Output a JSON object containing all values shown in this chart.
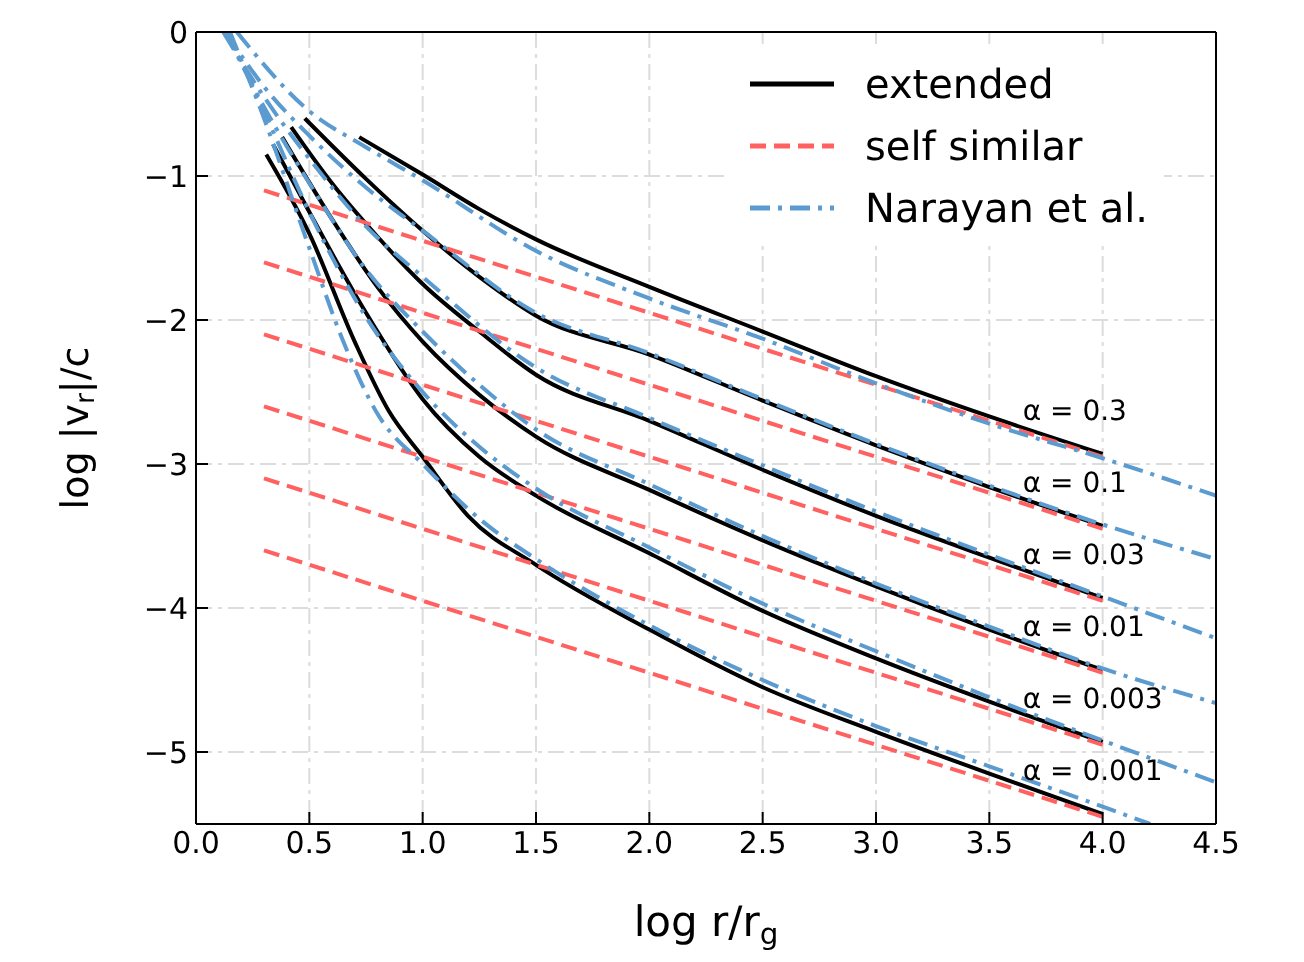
{
  "chart_data": {
    "type": "line",
    "xlabel": "log r/r$_{g}$",
    "ylabel": "log |v$_{r}$|/c",
    "xlim": [
      0,
      4.5
    ],
    "ylim": [
      -5.5,
      0
    ],
    "xticks": [
      {
        "value": 0,
        "label": "0.0"
      },
      {
        "value": 0.5,
        "label": "0.5"
      },
      {
        "value": 1,
        "label": "1.0"
      },
      {
        "value": 1.5,
        "label": "1.5"
      },
      {
        "value": 2,
        "label": "2.0"
      },
      {
        "value": 2.5,
        "label": "2.5"
      },
      {
        "value": 3,
        "label": "3.0"
      },
      {
        "value": 3.5,
        "label": "3.5"
      },
      {
        "value": 4,
        "label": "4.0"
      },
      {
        "value": 4.5,
        "label": "4.5"
      }
    ],
    "yticks": [
      {
        "value": 0,
        "label": "0"
      },
      {
        "value": -1,
        "label": "−1"
      },
      {
        "value": -2,
        "label": "−2"
      },
      {
        "value": -3,
        "label": "−3"
      },
      {
        "value": -4,
        "label": "−4"
      },
      {
        "value": -5,
        "label": "−5"
      }
    ],
    "grid": true,
    "legend": "top right",
    "marker": "none",
    "series": [
      {
        "name": "extended",
        "color": "#000000",
        "line_style": "solid",
        "x": [
          0.72,
          1.0,
          1.25,
          1.5,
          2,
          2.5,
          3,
          3.5,
          4
        ],
        "values": [
          -0.73,
          -0.99,
          -1.23,
          -1.44,
          -1.77,
          -2.08,
          -2.39,
          -2.67,
          -2.93
        ]
      },
      {
        "color": "#000000",
        "line_style": "solid",
        "x": [
          0.48,
          0.75,
          1.0,
          1.25,
          1.5,
          2,
          2.5,
          3,
          3.5,
          4
        ],
        "values": [
          -0.6,
          -1.02,
          -1.38,
          -1.7,
          -1.97,
          -2.24,
          -2.56,
          -2.87,
          -3.16,
          -3.43
        ]
      },
      {
        "color": "#000000",
        "line_style": "solid",
        "x": [
          0.42,
          0.6,
          0.8,
          1.0,
          1.25,
          1.5,
          2,
          2.5,
          3,
          3.5,
          4
        ],
        "values": [
          -0.66,
          -1.05,
          -1.42,
          -1.75,
          -2.08,
          -2.38,
          -2.7,
          -3.04,
          -3.36,
          -3.65,
          -3.93
        ]
      },
      {
        "color": "#000000",
        "line_style": "solid",
        "x": [
          0.38,
          0.6,
          0.8,
          1.0,
          1.25,
          1.5,
          2,
          2.5,
          3,
          3.5,
          4
        ],
        "values": [
          -0.73,
          -1.3,
          -1.77,
          -2.15,
          -2.52,
          -2.81,
          -3.18,
          -3.53,
          -3.85,
          -4.15,
          -4.43
        ]
      },
      {
        "color": "#000000",
        "line_style": "solid",
        "x": [
          0.34,
          0.5,
          0.75,
          1.0,
          1.25,
          1.5,
          2,
          2.5,
          3,
          3.5,
          4
        ],
        "values": [
          -0.78,
          -1.25,
          -1.95,
          -2.55,
          -2.95,
          -3.22,
          -3.62,
          -4.02,
          -4.35,
          -4.65,
          -4.93
        ]
      },
      {
        "color": "#000000",
        "line_style": "solid",
        "x": [
          0.31,
          0.5,
          0.7,
          0.85,
          1.0,
          1.2,
          1.5,
          2,
          2.5,
          3,
          3.5,
          4
        ],
        "values": [
          -0.85,
          -1.4,
          -2.15,
          -2.63,
          -2.95,
          -3.36,
          -3.7,
          -4.15,
          -4.55,
          -4.86,
          -5.15,
          -5.43
        ]
      },
      {
        "name": "self similar",
        "color": "#ff6060",
        "line_style": "dashed",
        "x": [
          0.3,
          4
        ],
        "values": [
          -1.1,
          -2.95
        ]
      },
      {
        "color": "#ff6060",
        "line_style": "dashed",
        "x": [
          0.3,
          4
        ],
        "values": [
          -1.6,
          -3.45
        ]
      },
      {
        "color": "#ff6060",
        "line_style": "dashed",
        "x": [
          0.3,
          4
        ],
        "values": [
          -2.1,
          -3.95
        ]
      },
      {
        "color": "#ff6060",
        "line_style": "dashed",
        "x": [
          0.3,
          4
        ],
        "values": [
          -2.6,
          -4.45
        ]
      },
      {
        "color": "#ff6060",
        "line_style": "dashed",
        "x": [
          0.3,
          4
        ],
        "values": [
          -3.1,
          -4.95
        ]
      },
      {
        "color": "#ff6060",
        "line_style": "dashed",
        "x": [
          0.3,
          4
        ],
        "values": [
          -3.6,
          -5.45
        ]
      },
      {
        "name": "Narayan et al.",
        "color": "#5b9bcf",
        "line_style": "dashdot",
        "x": [
          0.18,
          0.5,
          0.75,
          1.0,
          1.5,
          2,
          2.5,
          3,
          3.5,
          4,
          4.5
        ],
        "values": [
          0,
          -0.55,
          -0.8,
          -1.03,
          -1.52,
          -1.85,
          -2.13,
          -2.44,
          -2.72,
          -2.96,
          -3.22
        ]
      },
      {
        "color": "#5b9bcf",
        "line_style": "dashdot",
        "x": [
          0.13,
          0.3,
          0.5,
          0.75,
          1.0,
          1.5,
          2,
          2.5,
          3,
          3.5,
          4,
          4.5
        ],
        "values": [
          0,
          -0.38,
          -0.72,
          -1.08,
          -1.38,
          -1.95,
          -2.23,
          -2.55,
          -2.86,
          -3.15,
          -3.42,
          -3.66
        ]
      },
      {
        "color": "#5b9bcf",
        "line_style": "dashdot",
        "x": [
          0.12,
          0.3,
          0.5,
          0.75,
          1.0,
          1.5,
          2,
          2.5,
          3,
          3.5,
          4,
          4.5
        ],
        "values": [
          0,
          -0.45,
          -0.88,
          -1.35,
          -1.7,
          -2.33,
          -2.68,
          -3.01,
          -3.33,
          -3.63,
          -3.92,
          -4.21
        ]
      },
      {
        "color": "#5b9bcf",
        "line_style": "dashdot",
        "x": [
          0.13,
          0.3,
          0.5,
          0.75,
          1.0,
          1.25,
          1.5,
          2,
          2.5,
          3,
          3.5,
          4,
          4.5
        ],
        "values": [
          0,
          -0.52,
          -1.05,
          -1.65,
          -2.08,
          -2.45,
          -2.76,
          -3.14,
          -3.5,
          -3.83,
          -4.13,
          -4.42,
          -4.66
        ]
      },
      {
        "color": "#5b9bcf",
        "line_style": "dashdot",
        "x": [
          0.14,
          0.3,
          0.5,
          0.75,
          1.0,
          1.25,
          1.5,
          2,
          2.5,
          3,
          3.5,
          4,
          4.5
        ],
        "values": [
          0,
          -0.55,
          -1.25,
          -1.98,
          -2.5,
          -2.88,
          -3.17,
          -3.58,
          -3.97,
          -4.3,
          -4.62,
          -4.92,
          -5.21
        ]
      },
      {
        "color": "#5b9bcf",
        "line_style": "dashdot",
        "x": [
          0.15,
          0.3,
          0.5,
          0.65,
          0.8,
          1.0,
          1.25,
          1.5,
          2,
          2.5,
          3,
          3.5,
          4,
          4.21
        ],
        "values": [
          0,
          -0.6,
          -1.5,
          -2.15,
          -2.65,
          -3.0,
          -3.38,
          -3.66,
          -4.12,
          -4.5,
          -4.82,
          -5.1,
          -5.38,
          -5.5
        ]
      }
    ],
    "annotations": [
      "α = 0.3",
      "α = 0.1",
      "α = 0.03",
      "α = 0.01",
      "α = 0.003",
      "α = 0.001"
    ]
  }
}
